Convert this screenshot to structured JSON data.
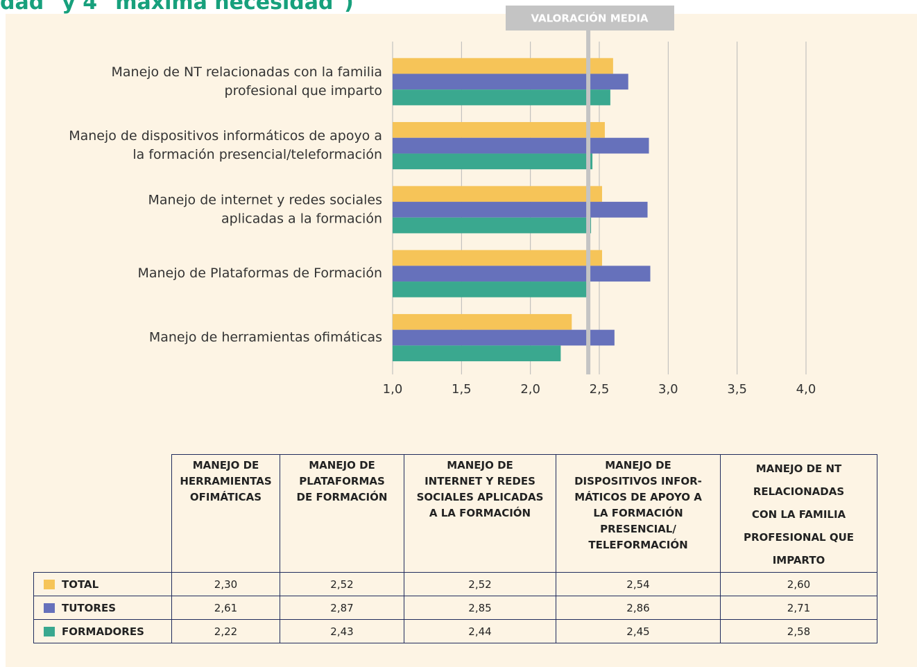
{
  "header": {
    "title": "dad\" y 4 \"máxima necesidad\")"
  },
  "chart_data": {
    "type": "hbar",
    "categories": [
      [
        "Manejo de herramientas ofimáticas"
      ],
      [
        "Manejo de Plataformas de Formación"
      ],
      [
        "Manejo de internet y redes sociales",
        "aplicadas a la formación"
      ],
      [
        "Manejo de dispositivos informáticos de apoyo a",
        "la formación presencial/teleformación"
      ],
      [
        "Manejo de NT relacionadas con la familia",
        "profesional que imparto"
      ]
    ],
    "series": [
      {
        "name": "TOTAL",
        "color": "#f6c458",
        "values": [
          2.3,
          2.52,
          2.52,
          2.54,
          2.6
        ],
        "value_labels": [
          "2,30",
          "2,52",
          "2,52",
          "2,54",
          "2,60"
        ]
      },
      {
        "name": "TUTORES",
        "color": "#6671bb",
        "values": [
          2.61,
          2.87,
          2.85,
          2.86,
          2.71
        ],
        "value_labels": [
          "2,61",
          "2,87",
          "2,85",
          "2,86",
          "2,71"
        ]
      },
      {
        "name": "FORMADORES",
        "color": "#3aa88f",
        "values": [
          2.22,
          2.43,
          2.44,
          2.45,
          2.58
        ],
        "value_labels": [
          "2,22",
          "2,43",
          "2,44",
          "2,45",
          "2,58"
        ]
      }
    ],
    "xlim": [
      1.0,
      4.0
    ],
    "xticks": [
      {
        "value": 1.0,
        "label": "1,0"
      },
      {
        "value": 1.5,
        "label": "1,5"
      },
      {
        "value": 2.0,
        "label": "2,0"
      },
      {
        "value": 2.5,
        "label": "2,5"
      },
      {
        "value": 3.0,
        "label": "3,0"
      },
      {
        "value": 3.5,
        "label": "3,5"
      },
      {
        "value": 4.0,
        "label": "4,0"
      }
    ],
    "grid": true,
    "mean_line": {
      "value": 2.42,
      "label": "VALORACIÓN MEDIA",
      "color": "#c4c4c4"
    }
  },
  "table": {
    "columns": [
      [
        "MANEJO DE",
        "HERRAMIENTAS",
        "OFIMÁTICAS"
      ],
      [
        "MANEJO DE",
        "PLATAFORMAS",
        "DE FORMACIÓN"
      ],
      [
        "MANEJO DE",
        "INTERNET Y REDES",
        "SOCIALES APLICADAS",
        "A LA FORMACIÓN"
      ],
      [
        "MANEJO DE",
        "DISPOSITIVOS INFOR-",
        "MÁTICOS DE APOYO A",
        "LA FORMACIÓN",
        "PRESENCIAL/",
        "TELEFORMACIÓN"
      ],
      [
        "MANEJO DE NT",
        "RELACIONADAS",
        "CON LA FAMILIA",
        "PROFESIONAL QUE",
        "IMPARTO"
      ]
    ]
  }
}
